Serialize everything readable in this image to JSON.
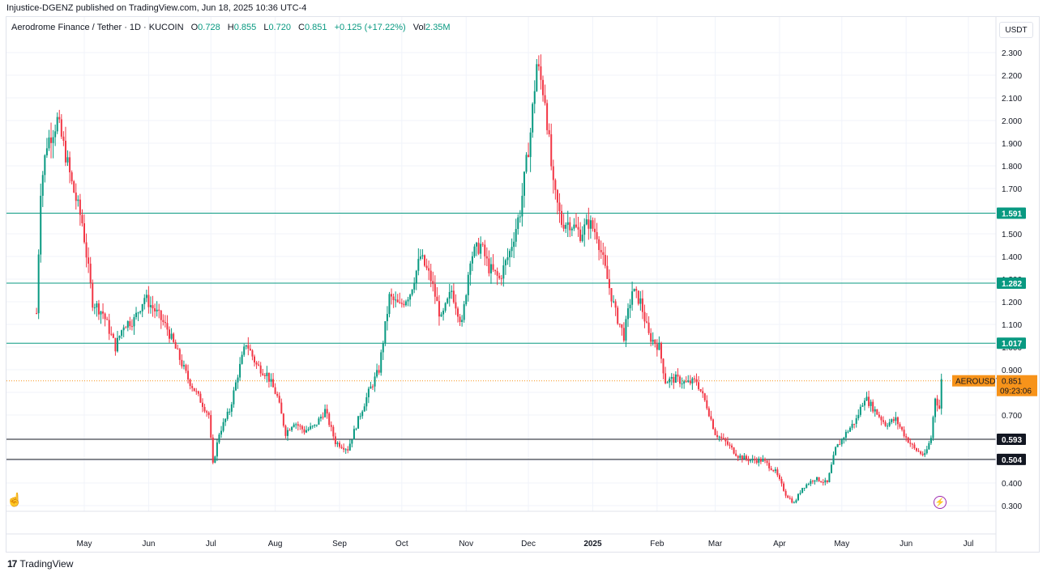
{
  "publisher": "Injustice-DGENZ published on TradingView.com, Jun 18, 2025 10:36 UTC-4",
  "legend": {
    "symbol": "Aerodrome Finance / Tether · 1D · KUCOIN",
    "o_label": "O",
    "o": "0.728",
    "h_label": "H",
    "h": "0.855",
    "l_label": "L",
    "l": "0.720",
    "c_label": "C",
    "c": "0.851",
    "change": "+0.125 (+17.22%)",
    "vol_label": "Vol",
    "vol": "2.35M"
  },
  "currency": "USDT",
  "footer_brand": "TradingView",
  "footer_logo": "17",
  "colors": {
    "up": "#089981",
    "down": "#f23645",
    "support": "#089981",
    "black_level": "#131722",
    "price_tag": "#f7931a"
  },
  "chart_data": {
    "type": "candlestick",
    "symbol": "AEROUSDT",
    "ylim": [
      0.28,
      2.36
    ],
    "y_ticks": [
      "0.300",
      "0.400",
      "0.500",
      "0.600",
      "0.700",
      "0.800",
      "0.900",
      "1.000",
      "1.100",
      "1.200",
      "1.300",
      "1.400",
      "1.500",
      "1.600",
      "1.700",
      "1.800",
      "1.900",
      "2.000",
      "2.100",
      "2.200",
      "2.300"
    ],
    "y_tick_values": [
      0.3,
      0.4,
      0.5,
      0.6,
      0.7,
      0.8,
      0.9,
      1.0,
      1.1,
      1.2,
      1.3,
      1.4,
      1.5,
      1.6,
      1.7,
      1.8,
      1.9,
      2.0,
      2.1,
      2.2,
      2.3
    ],
    "x_ticks": [
      "May",
      "Jun",
      "Jul",
      "Aug",
      "Sep",
      "Oct",
      "Nov",
      "Dec",
      "2025",
      "Feb",
      "Mar",
      "Apr",
      "May",
      "Jun",
      "Jul"
    ],
    "x_tick_dates": [
      "2024-05-01",
      "2024-06-01",
      "2024-07-01",
      "2024-08-01",
      "2024-09-01",
      "2024-10-01",
      "2024-11-01",
      "2024-12-01",
      "2025-01-01",
      "2025-02-01",
      "2025-03-01",
      "2025-04-01",
      "2025-05-01",
      "2025-06-01",
      "2025-07-01"
    ],
    "horizontal_lines": [
      {
        "value": 1.591,
        "label": "1.591",
        "color": "#089981"
      },
      {
        "value": 1.282,
        "label": "1.282",
        "color": "#089981"
      },
      {
        "value": 1.017,
        "label": "1.017",
        "color": "#089981"
      },
      {
        "value": 0.593,
        "label": "0.593",
        "color": "#131722"
      },
      {
        "value": 0.504,
        "label": "0.504",
        "color": "#131722"
      }
    ],
    "last_price": {
      "value": 0.851,
      "label": "0.851",
      "countdown": "09:23:06",
      "symbol_tag": "AEROUSDT"
    },
    "price_path": [
      [
        "2024-04-08",
        1.15
      ],
      [
        "2024-04-10",
        1.7
      ],
      [
        "2024-04-13",
        1.9
      ],
      [
        "2024-04-18",
        2.0
      ],
      [
        "2024-04-22",
        1.85
      ],
      [
        "2024-04-25",
        1.72
      ],
      [
        "2024-04-30",
        1.55
      ],
      [
        "2024-05-05",
        1.2
      ],
      [
        "2024-05-10",
        1.15
      ],
      [
        "2024-05-16",
        1.0
      ],
      [
        "2024-05-20",
        1.1
      ],
      [
        "2024-05-25",
        1.12
      ],
      [
        "2024-05-30",
        1.22
      ],
      [
        "2024-06-05",
        1.15
      ],
      [
        "2024-06-10",
        1.08
      ],
      [
        "2024-06-15",
        0.97
      ],
      [
        "2024-06-20",
        0.86
      ],
      [
        "2024-06-25",
        0.78
      ],
      [
        "2024-06-30",
        0.7
      ],
      [
        "2024-07-02",
        0.48
      ],
      [
        "2024-07-05",
        0.62
      ],
      [
        "2024-07-10",
        0.72
      ],
      [
        "2024-07-14",
        0.88
      ],
      [
        "2024-07-18",
        1.02
      ],
      [
        "2024-07-23",
        0.92
      ],
      [
        "2024-07-28",
        0.88
      ],
      [
        "2024-08-02",
        0.78
      ],
      [
        "2024-08-06",
        0.62
      ],
      [
        "2024-08-10",
        0.67
      ],
      [
        "2024-08-15",
        0.63
      ],
      [
        "2024-08-20",
        0.65
      ],
      [
        "2024-08-25",
        0.72
      ],
      [
        "2024-08-30",
        0.58
      ],
      [
        "2024-09-05",
        0.55
      ],
      [
        "2024-09-10",
        0.68
      ],
      [
        "2024-09-15",
        0.8
      ],
      [
        "2024-09-20",
        0.9
      ],
      [
        "2024-09-25",
        1.22
      ],
      [
        "2024-09-30",
        1.18
      ],
      [
        "2024-10-05",
        1.24
      ],
      [
        "2024-10-10",
        1.4
      ],
      [
        "2024-10-15",
        1.3
      ],
      [
        "2024-10-20",
        1.12
      ],
      [
        "2024-10-25",
        1.25
      ],
      [
        "2024-10-30",
        1.1
      ],
      [
        "2024-11-03",
        1.4
      ],
      [
        "2024-11-08",
        1.45
      ],
      [
        "2024-11-12",
        1.35
      ],
      [
        "2024-11-17",
        1.3
      ],
      [
        "2024-11-22",
        1.42
      ],
      [
        "2024-11-27",
        1.6
      ],
      [
        "2024-12-02",
        1.95
      ],
      [
        "2024-12-05",
        2.25
      ],
      [
        "2024-12-09",
        2.1
      ],
      [
        "2024-12-13",
        1.7
      ],
      [
        "2024-12-17",
        1.55
      ],
      [
        "2024-12-21",
        1.55
      ],
      [
        "2024-12-26",
        1.5
      ],
      [
        "2024-12-30",
        1.55
      ],
      [
        "2025-01-03",
        1.5
      ],
      [
        "2025-01-08",
        1.3
      ],
      [
        "2025-01-12",
        1.15
      ],
      [
        "2025-01-16",
        1.05
      ],
      [
        "2025-01-20",
        1.25
      ],
      [
        "2025-01-24",
        1.2
      ],
      [
        "2025-01-28",
        1.05
      ],
      [
        "2025-02-02",
        1.0
      ],
      [
        "2025-02-05",
        0.85
      ],
      [
        "2025-02-10",
        0.86
      ],
      [
        "2025-02-15",
        0.84
      ],
      [
        "2025-02-20",
        0.85
      ],
      [
        "2025-02-25",
        0.74
      ],
      [
        "2025-03-01",
        0.62
      ],
      [
        "2025-03-06",
        0.58
      ],
      [
        "2025-03-12",
        0.52
      ],
      [
        "2025-03-18",
        0.5
      ],
      [
        "2025-03-24",
        0.5
      ],
      [
        "2025-03-30",
        0.45
      ],
      [
        "2025-04-04",
        0.35
      ],
      [
        "2025-04-08",
        0.31
      ],
      [
        "2025-04-12",
        0.38
      ],
      [
        "2025-04-18",
        0.42
      ],
      [
        "2025-04-24",
        0.4
      ],
      [
        "2025-04-28",
        0.55
      ],
      [
        "2025-05-03",
        0.62
      ],
      [
        "2025-05-08",
        0.68
      ],
      [
        "2025-05-12",
        0.78
      ],
      [
        "2025-05-17",
        0.72
      ],
      [
        "2025-05-22",
        0.66
      ],
      [
        "2025-05-27",
        0.68
      ],
      [
        "2025-06-01",
        0.6
      ],
      [
        "2025-06-05",
        0.55
      ],
      [
        "2025-06-10",
        0.52
      ],
      [
        "2025-06-13",
        0.6
      ],
      [
        "2025-06-15",
        0.78
      ],
      [
        "2025-06-17",
        0.73
      ],
      [
        "2025-06-18",
        0.851
      ]
    ]
  }
}
